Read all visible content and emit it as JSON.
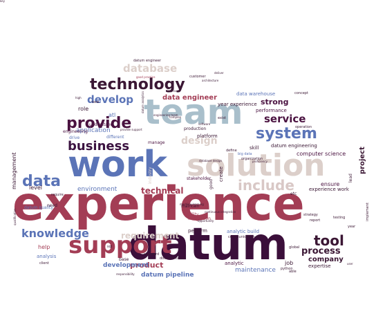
{
  "words": [
    {
      "text": "experience",
      "color": "#a33d55",
      "weight": "bold",
      "size": 68
    },
    {
      "text": "datum",
      "color": "#3b0f3a",
      "weight": "bold",
      "size": 64
    },
    {
      "text": "work",
      "color": "#5b74b7",
      "weight": "bold",
      "size": 52
    },
    {
      "text": "team",
      "color": "#a9bfcb",
      "weight": "bold",
      "size": 50
    },
    {
      "text": "solution",
      "color": "#dccfca",
      "weight": "bold",
      "size": 44
    },
    {
      "text": "support",
      "color": "#a33d55",
      "weight": "bold",
      "size": 34
    },
    {
      "text": "technology",
      "color": "#3b1734",
      "weight": "bold",
      "size": 22
    },
    {
      "text": "system",
      "color": "#5b74b7",
      "weight": "bold",
      "size": 22
    },
    {
      "text": "provide",
      "color": "#4a1240",
      "weight": "bold",
      "size": 22
    },
    {
      "text": "business",
      "color": "#3b1240",
      "weight": "bold",
      "size": 18
    },
    {
      "text": "include",
      "color": "#d9c8c6",
      "weight": "bold",
      "size": 20
    },
    {
      "text": "database",
      "color": "#dccfca",
      "weight": "bold",
      "size": 15
    },
    {
      "text": "develop",
      "color": "#5b74b7",
      "weight": "bold",
      "size": 15
    },
    {
      "text": "data",
      "color": "#5b74b7",
      "weight": "bold",
      "size": 22
    },
    {
      "text": "knowledge",
      "color": "#5b74b7",
      "weight": "bold",
      "size": 16
    },
    {
      "text": "tool",
      "color": "#3b1734",
      "weight": "bold",
      "size": 20
    },
    {
      "text": "service",
      "color": "#4a1240",
      "weight": "bold",
      "size": 15
    },
    {
      "text": "design",
      "color": "#dccfca",
      "weight": "bold",
      "size": 14
    },
    {
      "text": "process",
      "color": "#3b1734",
      "weight": "bold",
      "size": 13
    },
    {
      "text": "requirement",
      "color": "#dccfca",
      "weight": "bold",
      "size": 12
    },
    {
      "text": "technical",
      "color": "#a33d55",
      "weight": "bold",
      "size": 12
    },
    {
      "text": "product",
      "color": "#a33d55",
      "weight": "bold",
      "size": 11
    },
    {
      "text": "strong",
      "color": "#4a1240",
      "weight": "bold",
      "size": 11
    },
    {
      "text": "data engineer",
      "color": "#a33d55",
      "weight": "bold",
      "size": 10
    },
    {
      "text": "company",
      "color": "#3b1734",
      "weight": "bold",
      "size": 10
    },
    {
      "text": "project",
      "color": "#3b1734",
      "weight": "bold",
      "size": 10
    },
    {
      "text": "development",
      "color": "#5b74b7",
      "weight": "bold",
      "size": 9
    },
    {
      "text": "datum pipeline",
      "color": "#5b74b7",
      "weight": "bold",
      "size": 9
    },
    {
      "text": "maintenance",
      "color": "#5b74b7",
      "weight": "normal",
      "size": 9
    },
    {
      "text": "environment",
      "color": "#5b74b7",
      "weight": "normal",
      "size": 9
    },
    {
      "text": "application",
      "color": "#5b74b7",
      "weight": "normal",
      "size": 9
    },
    {
      "text": "management",
      "color": "#3b1734",
      "weight": "normal",
      "size": 8
    },
    {
      "text": "computer science",
      "color": "#4a1240",
      "weight": "normal",
      "size": 8
    },
    {
      "text": "datum engineering",
      "color": "#3b1734",
      "weight": "normal",
      "size": 7
    },
    {
      "text": "experience work",
      "color": "#3b1734",
      "weight": "normal",
      "size": 7
    },
    {
      "text": "data warehouse",
      "color": "#5b74b7",
      "weight": "normal",
      "size": 7
    },
    {
      "text": "year experience",
      "color": "#3b1734",
      "weight": "normal",
      "size": 7
    },
    {
      "text": "performance",
      "color": "#4a1240",
      "weight": "normal",
      "size": 7
    },
    {
      "text": "analytic",
      "color": "#4a1240",
      "weight": "normal",
      "size": 7
    },
    {
      "text": "analytic build",
      "color": "#5b74b7",
      "weight": "normal",
      "size": 7
    },
    {
      "text": "ensure",
      "color": "#4a1240",
      "weight": "normal",
      "size": 8
    },
    {
      "text": "level",
      "color": "#3b1734",
      "weight": "normal",
      "size": 8
    },
    {
      "text": "help",
      "color": "#a33d55",
      "weight": "normal",
      "size": 8
    },
    {
      "text": "analysis",
      "color": "#5b74b7",
      "weight": "normal",
      "size": 7
    },
    {
      "text": "expertise",
      "color": "#3b1734",
      "weight": "normal",
      "size": 7
    },
    {
      "text": "job",
      "color": "#3b1734",
      "weight": "normal",
      "size": 8
    },
    {
      "text": "role",
      "color": "#3b1734",
      "weight": "normal",
      "size": 8
    },
    {
      "text": "drive",
      "color": "#5b74b7",
      "weight": "normal",
      "size": 6
    },
    {
      "text": "engineering",
      "color": "#4a1240",
      "weight": "normal",
      "size": 6
    },
    {
      "text": "understand",
      "color": "#4a1240",
      "weight": "normal",
      "size": 6
    },
    {
      "text": "different",
      "color": "#5b74b7",
      "weight": "normal",
      "size": 6
    },
    {
      "text": "manage",
      "color": "#4a1240",
      "weight": "normal",
      "size": 6
    },
    {
      "text": "production",
      "color": "#3b1734",
      "weight": "normal",
      "size": 6
    },
    {
      "text": "stakeholder",
      "color": "#4a1240",
      "weight": "normal",
      "size": 6
    },
    {
      "text": "platform",
      "color": "#3b1734",
      "weight": "normal",
      "size": 7
    },
    {
      "text": "skill",
      "color": "#3b1734",
      "weight": "normal",
      "size": 7
    },
    {
      "text": "create",
      "color": "#3b1734",
      "weight": "normal",
      "size": 7
    },
    {
      "text": "perform",
      "color": "#3b1734",
      "weight": "normal",
      "size": 7
    },
    {
      "text": "maintain",
      "color": "#3b1734",
      "weight": "normal",
      "size": 6
    },
    {
      "text": "ability",
      "color": "#a33d55",
      "weight": "normal",
      "size": 6
    },
    {
      "text": "integration",
      "color": "#a33d55",
      "weight": "normal",
      "size": 6
    },
    {
      "text": "industry",
      "color": "#dccfca",
      "weight": "normal",
      "size": 6
    },
    {
      "text": "datum quality",
      "color": "#5b74b7",
      "weight": "normal",
      "size": 6
    },
    {
      "text": "big data",
      "color": "#5b74b7",
      "weight": "normal",
      "size": 5
    },
    {
      "text": "communication skill",
      "color": "#3b1734",
      "weight": "normal",
      "size": 5
    },
    {
      "text": "concept",
      "color": "#3b1734",
      "weight": "normal",
      "size": 5
    },
    {
      "text": "operation",
      "color": "#3b1734",
      "weight": "normal",
      "size": 5
    },
    {
      "text": "customer",
      "color": "#3b1734",
      "weight": "normal",
      "size": 5
    },
    {
      "text": "atl",
      "color": "#5b74b7",
      "weight": "normal",
      "size": 8
    },
    {
      "text": "global",
      "color": "#3b1734",
      "weight": "normal",
      "size": 5
    },
    {
      "text": "report",
      "color": "#3b1734",
      "weight": "normal",
      "size": 5
    },
    {
      "text": "strategy",
      "color": "#3b1734",
      "weight": "normal",
      "size": 5
    },
    {
      "text": "implement",
      "color": "#3b1734",
      "weight": "normal",
      "size": 5
    },
    {
      "text": "base",
      "color": "#3b1734",
      "weight": "normal",
      "size": 6
    },
    {
      "text": "lead",
      "color": "#3b1734",
      "weight": "normal",
      "size": 6
    },
    {
      "text": "good",
      "color": "#3b1734",
      "weight": "normal",
      "size": 6
    },
    {
      "text": "year",
      "color": "#3b1734",
      "weight": "normal",
      "size": 5
    },
    {
      "text": "need",
      "color": "#3b1734",
      "weight": "normal",
      "size": 6
    },
    {
      "text": "client",
      "color": "#3b1734",
      "weight": "normal",
      "size": 5
    },
    {
      "text": "able",
      "color": "#3b1734",
      "weight": "normal",
      "size": 5
    },
    {
      "text": "documentation",
      "color": "#3b1734",
      "weight": "normal",
      "size": 5
    },
    {
      "text": "standard",
      "color": "#3b1734",
      "weight": "normal",
      "size": 5
    },
    {
      "text": "python",
      "color": "#3b1734",
      "weight": "normal",
      "size": 5
    },
    {
      "text": "testing",
      "color": "#3b1734",
      "weight": "normal",
      "size": 5
    },
    {
      "text": "sql",
      "color": "#3b1734",
      "weight": "normal",
      "size": 5
    },
    {
      "text": "datum engineer",
      "color": "#3b1734",
      "weight": "normal",
      "size": 5
    },
    {
      "text": "organization",
      "color": "#3b1734",
      "weight": "normal",
      "size": 5
    },
    {
      "text": "define",
      "color": "#3b1734",
      "weight": "normal",
      "size": 5
    },
    {
      "text": "require",
      "color": "#3b1734",
      "weight": "normal",
      "size": 5
    },
    {
      "text": "exist",
      "color": "#3b1734",
      "weight": "normal",
      "size": 5
    },
    {
      "text": "architecture",
      "color": "#3b1734",
      "weight": "normal",
      "size": 4
    },
    {
      "text": "good practice",
      "color": "#a33d55",
      "weight": "normal",
      "size": 4
    },
    {
      "text": "qualification",
      "color": "#3b1734",
      "weight": "normal",
      "size": 4
    },
    {
      "text": "responsibility",
      "color": "#3b1734",
      "weight": "normal",
      "size": 4
    },
    {
      "text": "etc",
      "color": "#3b1734",
      "weight": "normal",
      "size": 6
    },
    {
      "text": "datum analytics",
      "color": "#3b1734",
      "weight": "normal",
      "size": 4
    },
    {
      "text": "engineering team",
      "color": "#3b1734",
      "weight": "normal",
      "size": 4
    },
    {
      "text": "continuous integration",
      "color": "#3b1734",
      "weight": "normal",
      "size": 4
    },
    {
      "text": "database design",
      "color": "#3b1734",
      "weight": "normal",
      "size": 4
    },
    {
      "text": "machine learning",
      "color": "#3b1734",
      "weight": "normal",
      "size": 4
    },
    {
      "text": "opportunity",
      "color": "#3b1734",
      "weight": "normal",
      "size": 4
    },
    {
      "text": "complex",
      "color": "#3b1734",
      "weight": "normal",
      "size": 4
    },
    {
      "text": "improve",
      "color": "#3b1734",
      "weight": "normal",
      "size": 4
    },
    {
      "text": "software",
      "color": "#3b1734",
      "weight": "normal",
      "size": 4
    },
    {
      "text": "provide support",
      "color": "#3b1734",
      "weight": "normal",
      "size": 4
    },
    {
      "text": "deliver",
      "color": "#3b1734",
      "weight": "normal",
      "size": 4
    },
    {
      "text": "user",
      "color": "#3b1734",
      "weight": "normal",
      "size": 4
    },
    {
      "text": "proficiency",
      "color": "#3b1734",
      "weight": "normal",
      "size": 4
    },
    {
      "text": "high",
      "color": "#3b1734",
      "weight": "normal",
      "size": 4
    },
    {
      "text": "new",
      "color": "#3b1734",
      "weight": "normal",
      "size": 5
    },
    {
      "text": "key",
      "color": "#3b1734",
      "weight": "normal",
      "size": 4
    }
  ]
}
